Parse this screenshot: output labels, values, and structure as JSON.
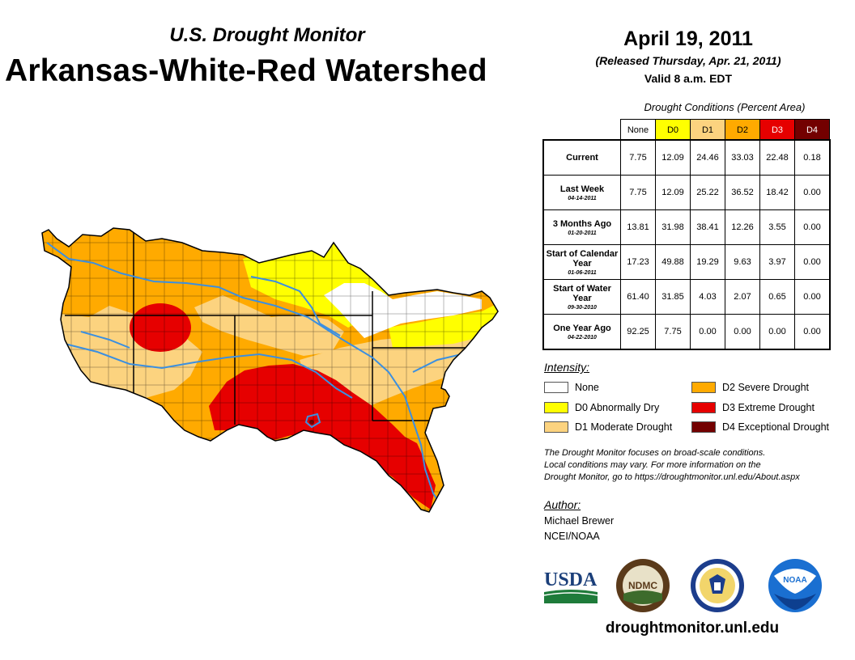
{
  "header": {
    "subtitle": "U.S. Drought Monitor",
    "title": "Arkansas-White-Red Watershed",
    "date": "April 19, 2011",
    "released": "(Released Thursday, Apr. 21, 2011)",
    "valid": "Valid 8 a.m. EDT"
  },
  "table": {
    "caption": "Drought Conditions (Percent Area)",
    "columns": [
      "None",
      "D0",
      "D1",
      "D2",
      "D3",
      "D4"
    ],
    "rows": [
      {
        "label": "Current",
        "date": "",
        "values": [
          "7.75",
          "12.09",
          "24.46",
          "33.03",
          "22.48",
          "0.18"
        ]
      },
      {
        "label": "Last Week",
        "date": "04-14-2011",
        "values": [
          "7.75",
          "12.09",
          "25.22",
          "36.52",
          "18.42",
          "0.00"
        ]
      },
      {
        "label": "3 Months Ago",
        "date": "01-20-2011",
        "values": [
          "13.81",
          "31.98",
          "38.41",
          "12.26",
          "3.55",
          "0.00"
        ]
      },
      {
        "label": "Start of Calendar Year",
        "date": "01-06-2011",
        "values": [
          "17.23",
          "49.88",
          "19.29",
          "9.63",
          "3.97",
          "0.00"
        ]
      },
      {
        "label": "Start of Water Year",
        "date": "09-30-2010",
        "values": [
          "61.40",
          "31.85",
          "4.03",
          "2.07",
          "0.65",
          "0.00"
        ]
      },
      {
        "label": "One Year Ago",
        "date": "04-22-2010",
        "values": [
          "92.25",
          "7.75",
          "0.00",
          "0.00",
          "0.00",
          "0.00"
        ]
      }
    ]
  },
  "legend": {
    "heading": "Intensity:",
    "items": [
      {
        "label": "None",
        "color": "#ffffff"
      },
      {
        "label": "D0 Abnormally Dry",
        "color": "#ffff00"
      },
      {
        "label": "D1 Moderate Drought",
        "color": "#fcd37f"
      },
      {
        "label": "D2 Severe Drought",
        "color": "#ffaa00"
      },
      {
        "label": "D3 Extreme Drought",
        "color": "#e60000"
      },
      {
        "label": "D4 Exceptional Drought",
        "color": "#730000"
      }
    ]
  },
  "note": {
    "line1": "The Drought Monitor focuses on broad-scale conditions.",
    "line2": "Local conditions may vary. For more information on the",
    "line3": "Drought Monitor, go to https://droughtmonitor.unl.edu/About.aspx"
  },
  "author": {
    "heading": "Author:",
    "name": "Michael Brewer",
    "org": "NCEI/NOAA"
  },
  "logos": {
    "usda": "USDA",
    "ndmc": "NDMC",
    "noaa": "NOAA"
  },
  "footer": {
    "url": "droughtmonitor.unl.edu"
  },
  "colors": {
    "none": "#ffffff",
    "d0": "#ffff00",
    "d1": "#fcd37f",
    "d2": "#ffaa00",
    "d3": "#e60000",
    "d4": "#730000",
    "river": "#3b8fe0"
  }
}
